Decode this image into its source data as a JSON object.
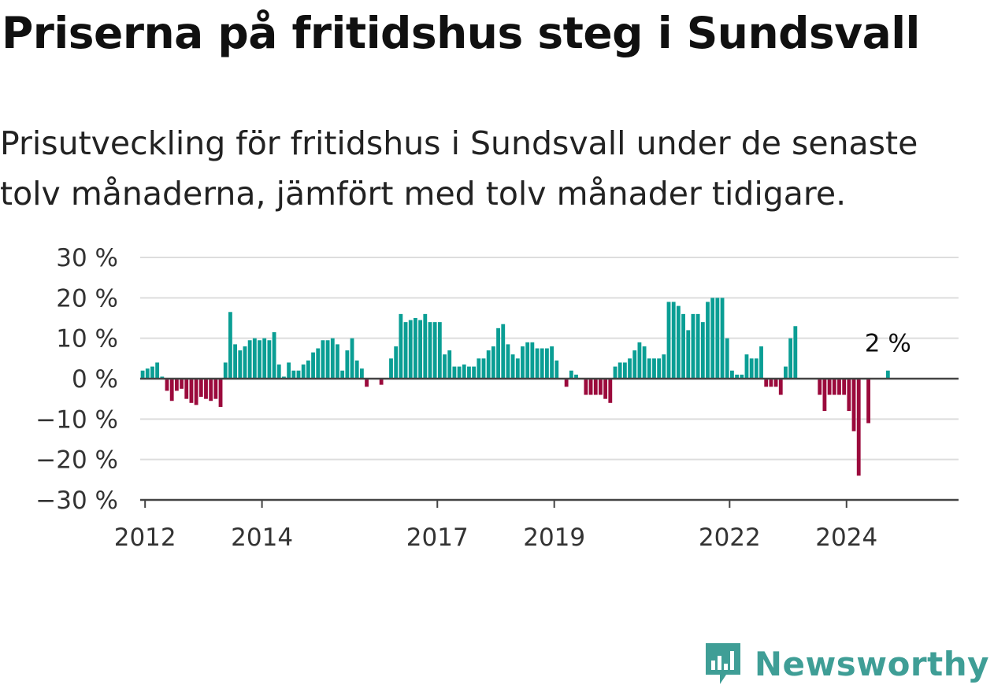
{
  "title": "Priserna på fritidshus steg i Sundsvall",
  "subtitle": "Prisutveckling för fritidshus i Sundsvall under de senaste tolv månaderna, jämfört med tolv månader tidigare.",
  "brand": "Newsworthy",
  "colors": {
    "positive": "#0a9e94",
    "negative": "#9b0a3c",
    "grid": "#dddddd",
    "axis": "#444444",
    "brand": "#3f9e96"
  },
  "chart_data": {
    "type": "bar",
    "title": "Priserna på fritidshus steg i Sundsvall",
    "ylabel": "",
    "xlabel": "",
    "ylim": [
      -30,
      30
    ],
    "yticks": [
      "30 %",
      "20 %",
      "10 %",
      "0 %",
      "−10 %",
      "−20 %",
      "−30 %"
    ],
    "ytick_values": [
      30,
      20,
      10,
      0,
      -10,
      -20,
      -30
    ],
    "xticks": [
      "2012",
      "2014",
      "2017",
      "2019",
      "2022",
      "2024"
    ],
    "xtick_values": [
      "2012-01",
      "2014-01",
      "2017-01",
      "2019-01",
      "2022-01",
      "2024-01"
    ],
    "x_start": "2011-12",
    "x_end": "2025-12",
    "annotation": "2 %",
    "series": [
      {
        "values": [
          2,
          2.5,
          3,
          4,
          0.5,
          -3,
          -5.5,
          -3,
          -2.5,
          -5,
          -6,
          -6.5,
          -4.5,
          -5,
          -5.5,
          -5,
          -7,
          4,
          16.5,
          8.5,
          7,
          8,
          9.5,
          10,
          9.5,
          10,
          9.5,
          11.5,
          3.5,
          0.5,
          4,
          2,
          2,
          3.5,
          4.5,
          6.5,
          7.5,
          9.5,
          9.5,
          10,
          8.5,
          2,
          7,
          10,
          4.5,
          2.5,
          -2,
          0,
          0,
          -1.5,
          0,
          5,
          8,
          16,
          14,
          14.5,
          15,
          14.5,
          16,
          14,
          14,
          14,
          6,
          7,
          3,
          3,
          3.5,
          3,
          3,
          5,
          5,
          7,
          8,
          12.5,
          13.5,
          8.5,
          6,
          5,
          8,
          9,
          9,
          7.5,
          7.5,
          7.5,
          8,
          4.5,
          0,
          -2,
          2,
          1,
          0,
          -4,
          -4,
          -4,
          -4,
          -5,
          -6,
          3,
          4,
          4,
          5,
          7,
          9,
          8,
          5,
          5,
          5,
          6,
          19,
          19,
          18,
          16,
          12,
          16,
          16,
          14,
          19,
          20,
          20,
          20,
          10,
          2,
          1,
          1,
          6,
          5,
          5,
          8,
          -2,
          -2,
          -2,
          -4,
          3,
          10,
          13,
          0,
          0,
          0,
          0,
          -4,
          -8,
          -4,
          -4,
          -4,
          -4,
          -8,
          -13,
          -24,
          0,
          -11,
          0,
          0,
          0,
          2
        ]
      }
    ]
  }
}
